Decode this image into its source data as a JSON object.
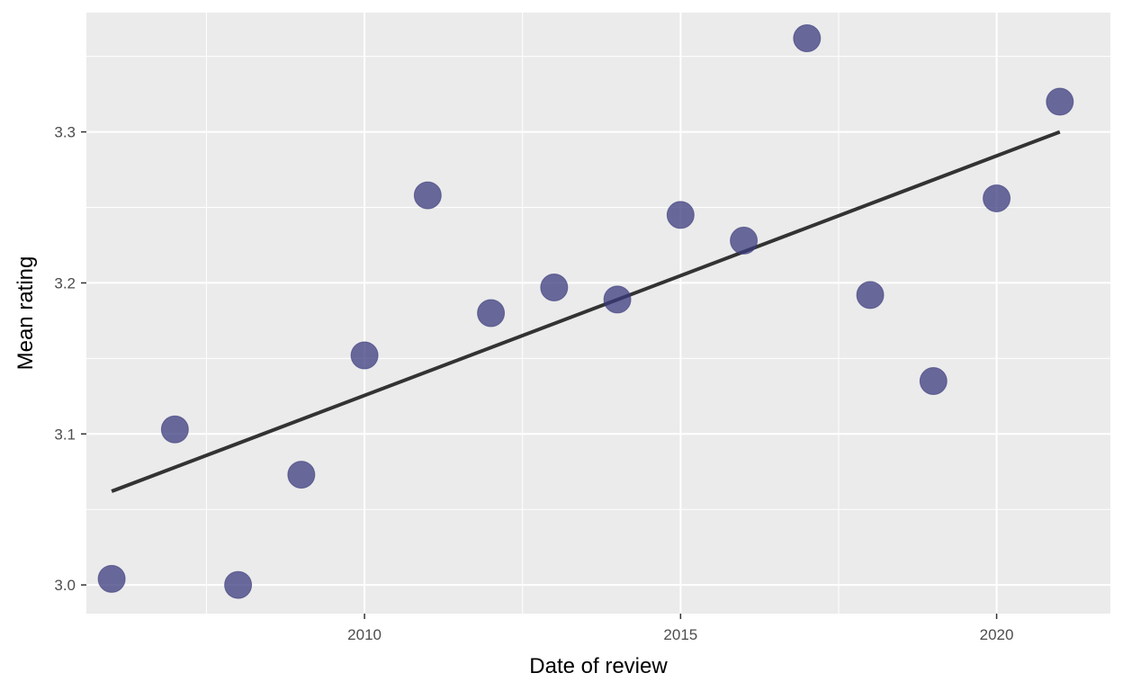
{
  "chart_data": {
    "type": "scatter",
    "title": "",
    "xlabel": "Date of review",
    "ylabel": "Mean rating",
    "xlim": [
      2005.6,
      2021.8
    ],
    "ylim": [
      2.981,
      3.379
    ],
    "x_ticks": [
      2010,
      2015,
      2020
    ],
    "x_tick_labels": [
      "2010",
      "2015",
      "2020"
    ],
    "y_ticks": [
      3.0,
      3.1,
      3.2,
      3.3
    ],
    "y_tick_labels": [
      "3.0",
      "3.1",
      "3.2",
      "3.3"
    ],
    "grid": true,
    "legend": "none",
    "points": [
      {
        "x": 2006,
        "y": 3.004
      },
      {
        "x": 2007,
        "y": 3.103
      },
      {
        "x": 2008,
        "y": 3.0
      },
      {
        "x": 2009,
        "y": 3.073
      },
      {
        "x": 2010,
        "y": 3.152
      },
      {
        "x": 2011,
        "y": 3.258
      },
      {
        "x": 2012,
        "y": 3.18
      },
      {
        "x": 2013,
        "y": 3.197
      },
      {
        "x": 2014,
        "y": 3.189
      },
      {
        "x": 2015,
        "y": 3.245
      },
      {
        "x": 2016,
        "y": 3.228
      },
      {
        "x": 2017,
        "y": 3.362
      },
      {
        "x": 2018,
        "y": 3.192
      },
      {
        "x": 2019,
        "y": 3.135
      },
      {
        "x": 2020,
        "y": 3.256
      },
      {
        "x": 2021,
        "y": 3.32
      }
    ],
    "trend_line": {
      "type": "linear",
      "x": [
        2006,
        2021
      ],
      "y": [
        3.062,
        3.3
      ]
    },
    "colors": {
      "panel": "#ebebeb",
      "grid_major": "#ffffff",
      "point": "#3b3b7d",
      "point_opacity": 0.75,
      "trend": "#333333"
    }
  }
}
